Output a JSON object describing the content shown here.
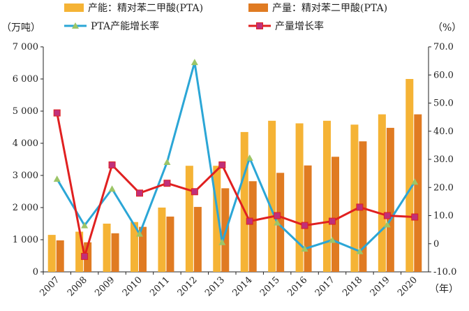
{
  "chart_data": {
    "type": "bar+line",
    "categories": [
      "2007",
      "2008",
      "2009",
      "2010",
      "2011",
      "2012",
      "2013",
      "2014",
      "2015",
      "2016",
      "2017",
      "2018",
      "2019",
      "2020"
    ],
    "bar_series": [
      {
        "name": "产能：精对苯二甲酸(PTA)",
        "color": "#F5B335",
        "values": [
          1150,
          1250,
          1500,
          1550,
          2000,
          3300,
          3300,
          4350,
          4700,
          4620,
          4700,
          4580,
          4900,
          6000
        ]
      },
      {
        "name": "产量：精对苯二甲酸(PTA)",
        "color": "#E07B22",
        "values": [
          980,
          920,
          1200,
          1400,
          1720,
          2020,
          2600,
          2820,
          3080,
          3310,
          3580,
          4060,
          4480,
          4900
        ]
      }
    ],
    "line_series": [
      {
        "name": "PTA产能增长率",
        "color": "#2BA6D6",
        "marker": "triangle",
        "marker_color": "#9CC567",
        "values": [
          23.0,
          6.5,
          19.5,
          3.5,
          29.0,
          64.5,
          0.5,
          30.5,
          7.5,
          -1.8,
          1.3,
          -2.7,
          6.8,
          22.0
        ]
      },
      {
        "name": "产量增长率",
        "color": "#E02020",
        "marker": "square",
        "marker_color": "#C0307A",
        "values": [
          46.5,
          -4.5,
          28.0,
          18.0,
          21.5,
          18.5,
          28.0,
          8.0,
          10.0,
          6.5,
          8.0,
          13.0,
          10.0,
          9.5
        ]
      }
    ],
    "left_axis": {
      "unit": "（万吨）",
      "ylim": [
        0,
        7000
      ],
      "ticks": [
        0,
        1000,
        2000,
        3000,
        4000,
        5000,
        6000,
        7000
      ],
      "tick_labels": [
        "0",
        "1 000",
        "2 000",
        "3 000",
        "4 000",
        "5 000",
        "6 000",
        "7 000"
      ]
    },
    "right_axis": {
      "unit": "（%）",
      "ylim": [
        -10,
        70
      ],
      "ticks": [
        -10,
        0,
        10,
        20,
        30,
        40,
        50,
        60,
        70
      ],
      "tick_labels": [
        "-10.0",
        "0",
        "10.0",
        "20.0",
        "30.0",
        "40.0",
        "50.0",
        "60.0",
        "70.0"
      ]
    },
    "x_unit": "（年）",
    "grid": false,
    "legend": "top"
  }
}
